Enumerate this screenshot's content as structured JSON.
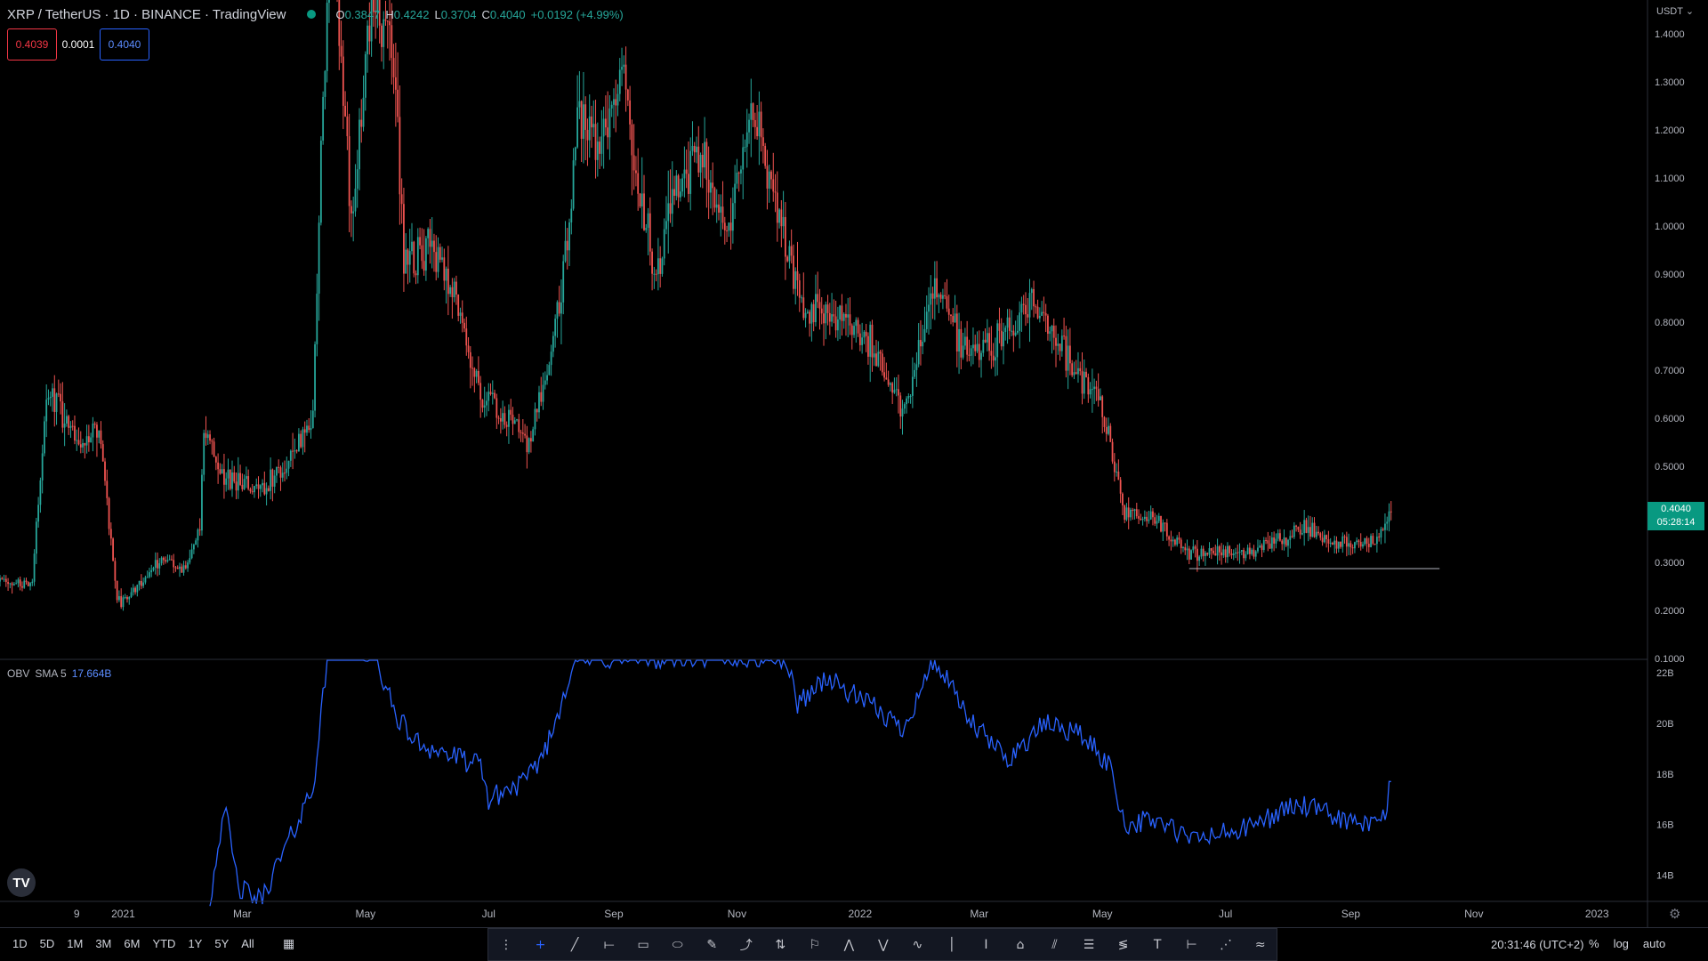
{
  "header": {
    "symbol": "XRP / TetherUS · 1D · BINANCE · TradingView",
    "open_label": "O",
    "open": "0.3847",
    "high_label": "H",
    "high": "0.4242",
    "low_label": "L",
    "low": "0.3704",
    "close_label": "C",
    "close": "0.4040",
    "change": "+0.0192 (+4.99%)"
  },
  "quote": {
    "sell": "0.4039",
    "spread": "0.0001",
    "buy": "0.4040"
  },
  "indicator": {
    "label": "OBV",
    "sma": "SMA 5",
    "value": "17.664B"
  },
  "currency": "USDT",
  "last_price": {
    "price": "0.4040",
    "countdown": "05:28:14"
  },
  "bottom_bar": {
    "ranges": [
      "1D",
      "5D",
      "1M",
      "3M",
      "6M",
      "YTD",
      "1Y",
      "5Y",
      "All"
    ],
    "compare_icon": "calendar-compare-icon",
    "clock": "20:31:46 (UTC+2)",
    "options": [
      "%",
      "log",
      "auto"
    ]
  },
  "drawing_tools": [
    {
      "name": "grip-icon",
      "glyph": "⋮"
    },
    {
      "name": "crosshair-icon",
      "glyph": "+"
    },
    {
      "name": "trend-line-icon",
      "glyph": "╱"
    },
    {
      "name": "horizontal-ray-icon",
      "glyph": "⟝"
    },
    {
      "name": "rectangle-icon",
      "glyph": "▭"
    },
    {
      "name": "ellipse-icon",
      "glyph": "⬭"
    },
    {
      "name": "brush-icon",
      "glyph": "✎"
    },
    {
      "name": "path-icon",
      "glyph": "⤴"
    },
    {
      "name": "long-position-icon",
      "glyph": "⇅"
    },
    {
      "name": "flag-icon",
      "glyph": "⚐"
    },
    {
      "name": "xabcd-pattern-icon",
      "glyph": "⋀"
    },
    {
      "name": "abcd-pattern-icon",
      "glyph": "⋁"
    },
    {
      "name": "elliott-wave-icon",
      "glyph": "∿"
    },
    {
      "name": "vertical-line-icon",
      "glyph": "│"
    },
    {
      "name": "text-cursor-icon",
      "glyph": "I"
    },
    {
      "name": "callout-icon",
      "glyph": "⌂"
    },
    {
      "name": "parallel-channel-icon",
      "glyph": "⫽"
    },
    {
      "name": "fib-retracement-icon",
      "glyph": "☰"
    },
    {
      "name": "fib-fan-icon",
      "glyph": "≶"
    },
    {
      "name": "text-icon",
      "glyph": "T"
    },
    {
      "name": "measure-icon",
      "glyph": "⊢"
    },
    {
      "name": "gann-fan-icon",
      "glyph": "⋰"
    },
    {
      "name": "wave-label-icon",
      "glyph": "≈"
    }
  ],
  "chart_data": {
    "type": "candlestick",
    "title": "XRP / TetherUS · 1D · BINANCE",
    "price_axis": {
      "ticks": [
        0.1,
        0.2,
        0.3,
        0.4,
        0.5,
        0.6,
        0.7,
        0.8,
        0.9,
        1.0,
        1.1,
        1.2,
        1.3,
        1.4
      ],
      "ylim": [
        0.1,
        1.47
      ],
      "tick_format": "4dp"
    },
    "time_axis": {
      "start": "2020-11-01",
      "end": "2023-01-26",
      "labels": [
        {
          "label": "9",
          "date": "2020-12-09"
        },
        {
          "label": "2021",
          "date": "2021-01-01"
        },
        {
          "label": "Mar",
          "date": "2021-03-01"
        },
        {
          "label": "May",
          "date": "2021-05-01"
        },
        {
          "label": "Jul",
          "date": "2021-07-01"
        },
        {
          "label": "Sep",
          "date": "2021-09-01"
        },
        {
          "label": "Nov",
          "date": "2021-11-01"
        },
        {
          "label": "2022",
          "date": "2022-01-01"
        },
        {
          "label": "Mar",
          "date": "2022-03-01"
        },
        {
          "label": "May",
          "date": "2022-05-01"
        },
        {
          "label": "Jul",
          "date": "2022-07-01"
        },
        {
          "label": "Sep",
          "date": "2022-09-01"
        },
        {
          "label": "Nov",
          "date": "2022-11-01"
        },
        {
          "label": "2023",
          "date": "2023-01-01"
        }
      ]
    },
    "price_series": {
      "name": "XRP/USDT",
      "up_color": "#26a69a",
      "down_color": "#ef5350",
      "close_path": [
        [
          "2020-11-01",
          0.26
        ],
        [
          "2020-11-17",
          0.25
        ],
        [
          "2020-11-24",
          0.66
        ],
        [
          "2020-12-01",
          0.62
        ],
        [
          "2020-12-12",
          0.55
        ],
        [
          "2020-12-20",
          0.58
        ],
        [
          "2020-12-29",
          0.22
        ],
        [
          "2021-01-02",
          0.22
        ],
        [
          "2021-01-20",
          0.31
        ],
        [
          "2021-02-01",
          0.28
        ],
        [
          "2021-02-08",
          0.38
        ],
        [
          "2021-02-10",
          0.59
        ],
        [
          "2021-02-20",
          0.47
        ],
        [
          "2021-03-10",
          0.45
        ],
        [
          "2021-03-25",
          0.52
        ],
        [
          "2021-04-05",
          0.6
        ],
        [
          "2021-04-08",
          1.05
        ],
        [
          "2021-04-14",
          1.65
        ],
        [
          "2021-04-24",
          1.02
        ],
        [
          "2021-05-04",
          1.49
        ],
        [
          "2021-05-15",
          1.34
        ],
        [
          "2021-05-20",
          0.92
        ],
        [
          "2021-06-02",
          0.97
        ],
        [
          "2021-06-16",
          0.84
        ],
        [
          "2021-06-27",
          0.65
        ],
        [
          "2021-07-15",
          0.58
        ],
        [
          "2021-07-21",
          0.55
        ],
        [
          "2021-08-01",
          0.74
        ],
        [
          "2021-08-10",
          1.0
        ],
        [
          "2021-08-14",
          1.26
        ],
        [
          "2021-08-25",
          1.15
        ],
        [
          "2021-09-06",
          1.33
        ],
        [
          "2021-09-12",
          1.12
        ],
        [
          "2021-09-22",
          0.88
        ],
        [
          "2021-10-01",
          1.06
        ],
        [
          "2021-10-14",
          1.17
        ],
        [
          "2021-10-27",
          1.0
        ],
        [
          "2021-11-09",
          1.24
        ],
        [
          "2021-11-20",
          1.05
        ],
        [
          "2021-12-04",
          0.82
        ],
        [
          "2021-12-15",
          0.83
        ],
        [
          "2022-01-05",
          0.77
        ],
        [
          "2022-01-22",
          0.61
        ],
        [
          "2022-02-07",
          0.88
        ],
        [
          "2022-02-20",
          0.75
        ],
        [
          "2022-03-10",
          0.76
        ],
        [
          "2022-03-28",
          0.84
        ],
        [
          "2022-04-10",
          0.75
        ],
        [
          "2022-05-01",
          0.62
        ],
        [
          "2022-05-12",
          0.4
        ],
        [
          "2022-05-25",
          0.4
        ],
        [
          "2022-06-13",
          0.32
        ],
        [
          "2022-07-10",
          0.32
        ],
        [
          "2022-08-10",
          0.37
        ],
        [
          "2022-08-25",
          0.34
        ],
        [
          "2022-09-10",
          0.34
        ],
        [
          "2022-09-18",
          0.37
        ],
        [
          "2022-09-21",
          0.404
        ]
      ]
    },
    "horizontal_line": {
      "value": 0.287,
      "from": "2022-06-13",
      "to": "2022-10-15"
    },
    "obv": {
      "label": "OBV SMA 5",
      "color": "#2962ff",
      "ticks": [
        "14B",
        "16B",
        "18B",
        "20B",
        "22B"
      ],
      "ylim": [
        13.0,
        22.5
      ],
      "series": [
        [
          "2021-02-13",
          13.0
        ],
        [
          "2021-02-20",
          16.8
        ],
        [
          "2021-02-27",
          13.5
        ],
        [
          "2021-03-10",
          13.0
        ],
        [
          "2021-03-25",
          15.5
        ],
        [
          "2021-04-05",
          17.5
        ],
        [
          "2021-04-08",
          19.5
        ],
        [
          "2021-04-13",
          23.2
        ],
        [
          "2021-05-06",
          22.6
        ],
        [
          "2021-05-15",
          20.5
        ],
        [
          "2021-05-25",
          19.3
        ],
        [
          "2021-06-10",
          18.8
        ],
        [
          "2021-06-27",
          18.3
        ],
        [
          "2021-07-01",
          17.0
        ],
        [
          "2021-07-21",
          17.8
        ],
        [
          "2021-08-01",
          19.5
        ],
        [
          "2021-08-12",
          22.5
        ],
        [
          "2021-09-20",
          22.6
        ],
        [
          "2021-10-20",
          22.6
        ],
        [
          "2021-11-25",
          22.6
        ],
        [
          "2021-12-01",
          20.8
        ],
        [
          "2021-12-15",
          21.8
        ],
        [
          "2022-01-10",
          20.5
        ],
        [
          "2022-01-22",
          19.8
        ],
        [
          "2022-02-07",
          22.5
        ],
        [
          "2022-02-25",
          20.0
        ],
        [
          "2022-03-15",
          18.6
        ],
        [
          "2022-04-03",
          20.0
        ],
        [
          "2022-04-20",
          19.6
        ],
        [
          "2022-05-05",
          18.3
        ],
        [
          "2022-05-12",
          16.0
        ],
        [
          "2022-05-28",
          16.2
        ],
        [
          "2022-06-13",
          15.4
        ],
        [
          "2022-07-10",
          15.8
        ],
        [
          "2022-08-05",
          16.8
        ],
        [
          "2022-08-25",
          16.3
        ],
        [
          "2022-09-10",
          15.9
        ],
        [
          "2022-09-18",
          16.4
        ],
        [
          "2022-09-21",
          17.7
        ]
      ]
    }
  }
}
